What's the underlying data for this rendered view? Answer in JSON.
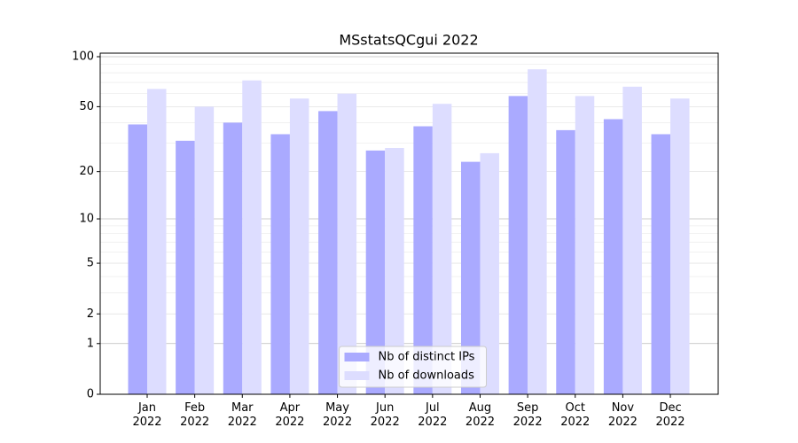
{
  "chart_data": {
    "type": "bar",
    "title": "MSstatsQCgui 2022",
    "categories": [
      "Jan\n2022",
      "Feb\n2022",
      "Mar\n2022",
      "Apr\n2022",
      "May\n2022",
      "Jun\n2022",
      "Jul\n2022",
      "Aug\n2022",
      "Sep\n2022",
      "Oct\n2022",
      "Nov\n2022",
      "Dec\n2022"
    ],
    "series": [
      {
        "name": "Nb of distinct IPs",
        "color": "#aaaaff",
        "values": [
          39,
          31,
          40,
          34,
          47,
          27,
          38,
          23,
          58,
          36,
          42,
          34
        ]
      },
      {
        "name": "Nb of downloads",
        "color": "#ddddff",
        "values": [
          64,
          50,
          72,
          56,
          60,
          28,
          52,
          26,
          84,
          58,
          66,
          56
        ]
      }
    ],
    "yscale": "log1p",
    "ylim": [
      0,
      105
    ],
    "yticks": [
      0,
      1,
      2,
      5,
      10,
      20,
      50,
      100
    ],
    "minor_yticks": [
      3,
      4,
      6,
      7,
      8,
      9,
      30,
      40,
      60,
      70,
      80,
      90
    ],
    "grid": true,
    "legend": "lower center"
  }
}
